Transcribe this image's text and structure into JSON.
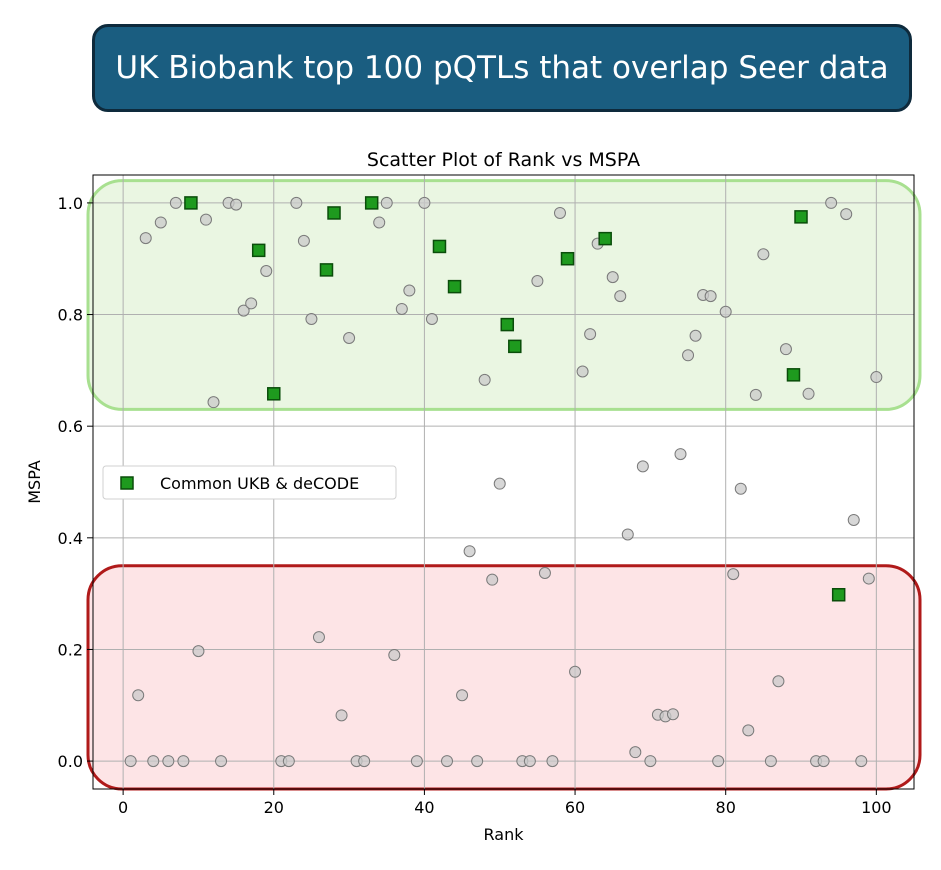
{
  "banner": {
    "title": "UK Biobank top 100 pQTLs that overlap Seer data",
    "bg_color": "#1a5d80"
  },
  "chart_data": {
    "type": "scatter",
    "title": "Scatter Plot of Rank vs MSPA",
    "xlabel": "Rank",
    "ylabel": "MSPA",
    "xlim": [
      -4,
      105
    ],
    "ylim": [
      -0.05,
      1.05
    ],
    "x_ticks": [
      "0",
      "20",
      "40",
      "60",
      "80",
      "100"
    ],
    "y_ticks": [
      "0.0",
      "0.2",
      "0.4",
      "0.6",
      "0.8",
      "1.0"
    ],
    "grid": true,
    "legend": {
      "placement": "center-left",
      "entries": [
        "Common UKB & deCODE"
      ]
    },
    "highlight_regions": [
      {
        "name": "high-mspa",
        "y_range": [
          0.63,
          1.04
        ],
        "fill": "#eaf6e2",
        "stroke": "#a8e090"
      },
      {
        "name": "low-mspa",
        "y_range": [
          -0.05,
          0.35
        ],
        "fill": "#fde4e6",
        "stroke": "#b01a1a"
      }
    ],
    "series": [
      {
        "marker": "circle",
        "color": "#c9c9c9",
        "points": [
          [
            1,
            0.0
          ],
          [
            2,
            0.118
          ],
          [
            3,
            0.937
          ],
          [
            4,
            0.0
          ],
          [
            5,
            0.965
          ],
          [
            6,
            0.0
          ],
          [
            7,
            1.0
          ],
          [
            8,
            0.0
          ],
          [
            10,
            0.197
          ],
          [
            11,
            0.97
          ],
          [
            12,
            0.643
          ],
          [
            13,
            0.0
          ],
          [
            14,
            1.0
          ],
          [
            15,
            0.997
          ],
          [
            16,
            0.807
          ],
          [
            17,
            0.82
          ],
          [
            19,
            0.878
          ],
          [
            21,
            0.0
          ],
          [
            22,
            0.0
          ],
          [
            23,
            1.0
          ],
          [
            24,
            0.932
          ],
          [
            25,
            0.792
          ],
          [
            26,
            0.222
          ],
          [
            29,
            0.082
          ],
          [
            30,
            0.758
          ],
          [
            31,
            0.0
          ],
          [
            32,
            0.0
          ],
          [
            34,
            0.965
          ],
          [
            35,
            1.0
          ],
          [
            36,
            0.19
          ],
          [
            37,
            0.81
          ],
          [
            38,
            0.843
          ],
          [
            39,
            0.0
          ],
          [
            40,
            1.0
          ],
          [
            41,
            0.792
          ],
          [
            43,
            0.0
          ],
          [
            45,
            0.118
          ],
          [
            46,
            0.376
          ],
          [
            47,
            0.0
          ],
          [
            48,
            0.683
          ],
          [
            49,
            0.325
          ],
          [
            50,
            0.497
          ],
          [
            53,
            0.0
          ],
          [
            54,
            0.0
          ],
          [
            55,
            0.86
          ],
          [
            56,
            0.337
          ],
          [
            57,
            0.0
          ],
          [
            58,
            0.982
          ],
          [
            60,
            0.16
          ],
          [
            61,
            0.698
          ],
          [
            62,
            0.765
          ],
          [
            63,
            0.927
          ],
          [
            65,
            0.867
          ],
          [
            66,
            0.833
          ],
          [
            67,
            0.406
          ],
          [
            68,
            0.016
          ],
          [
            69,
            0.528
          ],
          [
            70,
            0.0
          ],
          [
            71,
            0.083
          ],
          [
            72,
            0.08
          ],
          [
            73,
            0.084
          ],
          [
            74,
            0.55
          ],
          [
            75,
            0.727
          ],
          [
            76,
            0.762
          ],
          [
            77,
            0.835
          ],
          [
            78,
            0.833
          ],
          [
            79,
            0.0
          ],
          [
            80,
            0.805
          ],
          [
            81,
            0.335
          ],
          [
            82,
            0.488
          ],
          [
            83,
            0.055
          ],
          [
            84,
            0.656
          ],
          [
            85,
            0.908
          ],
          [
            86,
            0.0
          ],
          [
            87,
            0.143
          ],
          [
            88,
            0.738
          ],
          [
            91,
            0.658
          ],
          [
            92,
            0.0
          ],
          [
            93,
            0.0
          ],
          [
            94,
            1.0
          ],
          [
            96,
            0.98
          ],
          [
            97,
            0.432
          ],
          [
            98,
            0.0
          ],
          [
            99,
            0.327
          ],
          [
            100,
            0.688
          ]
        ]
      },
      {
        "name": "Common UKB & deCODE",
        "marker": "square",
        "color": "#1e9a1e",
        "points": [
          [
            9,
            1.0
          ],
          [
            18,
            0.915
          ],
          [
            20,
            0.658
          ],
          [
            27,
            0.88
          ],
          [
            28,
            0.982
          ],
          [
            33,
            1.0
          ],
          [
            42,
            0.922
          ],
          [
            44,
            0.85
          ],
          [
            51,
            0.782
          ],
          [
            52,
            0.743
          ],
          [
            59,
            0.9
          ],
          [
            64,
            0.936
          ],
          [
            89,
            0.692
          ],
          [
            90,
            0.975
          ],
          [
            95,
            0.298
          ]
        ]
      }
    ]
  }
}
